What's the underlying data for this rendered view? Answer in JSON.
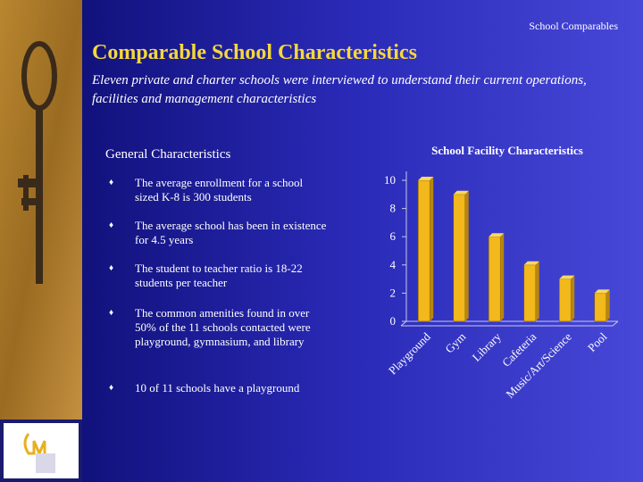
{
  "header": {
    "section": "School Comparables",
    "title": "Comparable School Characteristics",
    "subtitle": "Eleven private and charter schools were interviewed to understand their current operations, facilities and management characteristics"
  },
  "general": {
    "heading": "General Characteristics",
    "bullets": [
      "The average enrollment for a school sized K-8 is 300 students",
      "The average school has been in existence for 4.5 years",
      "The student to teacher ratio is 18-22 students per teacher",
      "The common amenities found in over 50% of the 11 schools contacted were playground, gymnasium, and library",
      "10 of 11 schools have a playground"
    ]
  },
  "chart_data": {
    "type": "bar",
    "title": "School Facility Characteristics",
    "categories": [
      "Playground",
      "Gym",
      "Library",
      "Cafeteria",
      "Music/Art/Science",
      "Pool"
    ],
    "values": [
      10,
      9,
      6,
      4,
      3,
      2
    ],
    "color": "#f2b81c",
    "ylim": [
      0,
      10
    ],
    "yticks": [
      0,
      2,
      4,
      6,
      8,
      10
    ],
    "grid": false
  }
}
